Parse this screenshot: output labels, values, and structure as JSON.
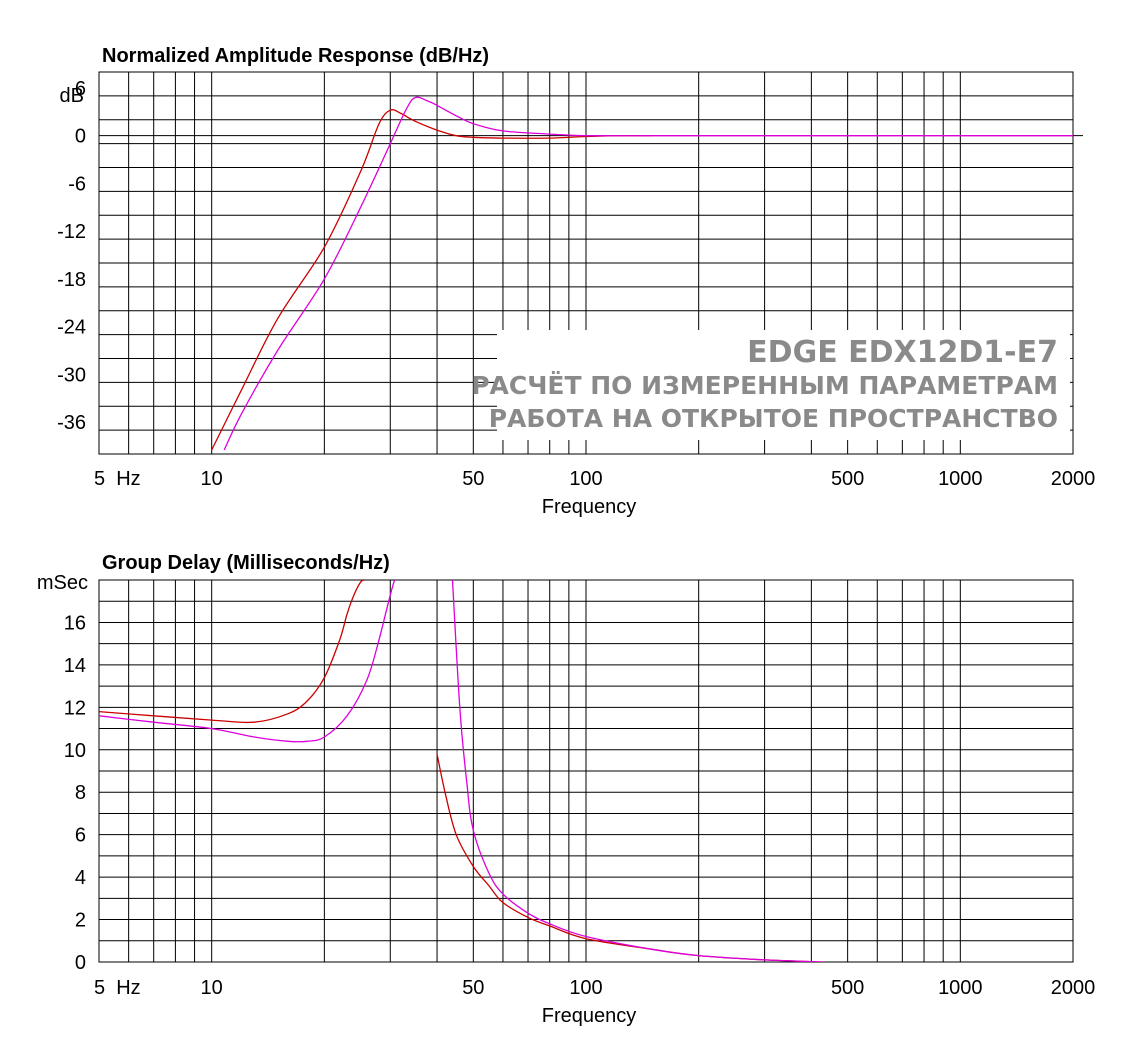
{
  "watermark": {
    "line1": "EDGE EDX12D1-E7",
    "line2": "РАСЧЁТ ПО ИЗМЕРЕННЫМ ПАРАМЕТРАМ",
    "line3": "РАБОТА НА ОТКРЫТОЕ ПРОСТРАНСТВО"
  },
  "chart_data": [
    {
      "type": "line",
      "title": "Normalized Amplitude Response (dB/Hz)",
      "xlabel": "Frequency",
      "ylabel": "dB",
      "x_scale": "log",
      "xlim": [
        5,
        2000
      ],
      "ylim": [
        -40,
        8
      ],
      "x_tick_labels": [
        "5  Hz",
        "10",
        "50",
        "100",
        "500",
        "1000",
        "2000"
      ],
      "x_tick_values": [
        5,
        10,
        50,
        100,
        500,
        1000,
        2000
      ],
      "y_ticks": [
        6,
        0,
        -6,
        -12,
        -18,
        -24,
        -30,
        -36
      ],
      "grid": true,
      "series": [
        {
          "color": "#cc0000",
          "x": [
            10,
            12,
            15,
            20,
            25,
            28,
            30,
            32,
            35,
            40,
            45,
            50,
            60,
            80,
            100,
            120,
            150
          ],
          "y": [
            -39.5,
            -32,
            -23,
            -14,
            -4.5,
            1.5,
            3.2,
            2.8,
            1.8,
            0.7,
            0.0,
            -0.2,
            -0.3,
            -0.3,
            -0.1,
            0.0,
            0.0
          ]
        },
        {
          "color": "#dd00dd",
          "x": [
            10.8,
            12,
            15,
            20,
            25,
            30,
            33,
            35,
            38,
            40,
            45,
            50,
            60,
            80,
            100,
            150,
            200,
            500,
            1000,
            2000
          ],
          "y": [
            -39.5,
            -35,
            -27,
            -18,
            -9,
            -1,
            3.2,
            4.8,
            4.3,
            3.8,
            2.5,
            1.5,
            0.6,
            0.2,
            0.0,
            0.0,
            0.0,
            0.0,
            0.0,
            0.0
          ]
        }
      ]
    },
    {
      "type": "line",
      "title": "Group Delay (Milliseconds/Hz)",
      "xlabel": "Frequency",
      "ylabel": "mSec",
      "x_scale": "log",
      "xlim": [
        5,
        2000
      ],
      "ylim": [
        0,
        18
      ],
      "x_tick_labels": [
        "5  Hz",
        "10",
        "50",
        "100",
        "500",
        "1000",
        "2000"
      ],
      "x_tick_values": [
        5,
        10,
        50,
        100,
        500,
        1000,
        2000
      ],
      "y_ticks": [
        16,
        14,
        12,
        10,
        8,
        6,
        4,
        2,
        0
      ],
      "grid": true,
      "series": [
        {
          "color": "#cc0000",
          "segments": [
            {
              "x": [
                5,
                7,
                10,
                13,
                16,
                18,
                20,
                22,
                23,
                24,
                25,
                25.6
              ],
              "y": [
                11.8,
                11.6,
                11.4,
                11.3,
                11.7,
                12.3,
                13.4,
                15.2,
                16.4,
                17.3,
                17.9,
                18
              ]
            },
            {
              "x": [
                40,
                42,
                45,
                50,
                55,
                60,
                70,
                80,
                100,
                150,
                200,
                300,
                430
              ],
              "y": [
                9.8,
                8.0,
                6.0,
                4.5,
                3.6,
                2.8,
                2.1,
                1.7,
                1.1,
                0.6,
                0.3,
                0.1,
                0.0
              ]
            }
          ]
        },
        {
          "color": "#dd00dd",
          "segments": [
            {
              "x": [
                5,
                7,
                10,
                13,
                16,
                18,
                20,
                23,
                26,
                28,
                30,
                30.8
              ],
              "y": [
                11.6,
                11.3,
                11.0,
                10.6,
                10.4,
                10.4,
                10.6,
                11.6,
                13.3,
                15.2,
                17.3,
                18
              ]
            },
            {
              "x": [
                44,
                46,
                48,
                50,
                55,
                60,
                70,
                80,
                100,
                150,
                200,
                300,
                430
              ],
              "y": [
                18,
                12.0,
                8.5,
                6.2,
                4.2,
                3.2,
                2.3,
                1.8,
                1.2,
                0.6,
                0.3,
                0.1,
                0.0
              ]
            }
          ]
        }
      ]
    }
  ]
}
